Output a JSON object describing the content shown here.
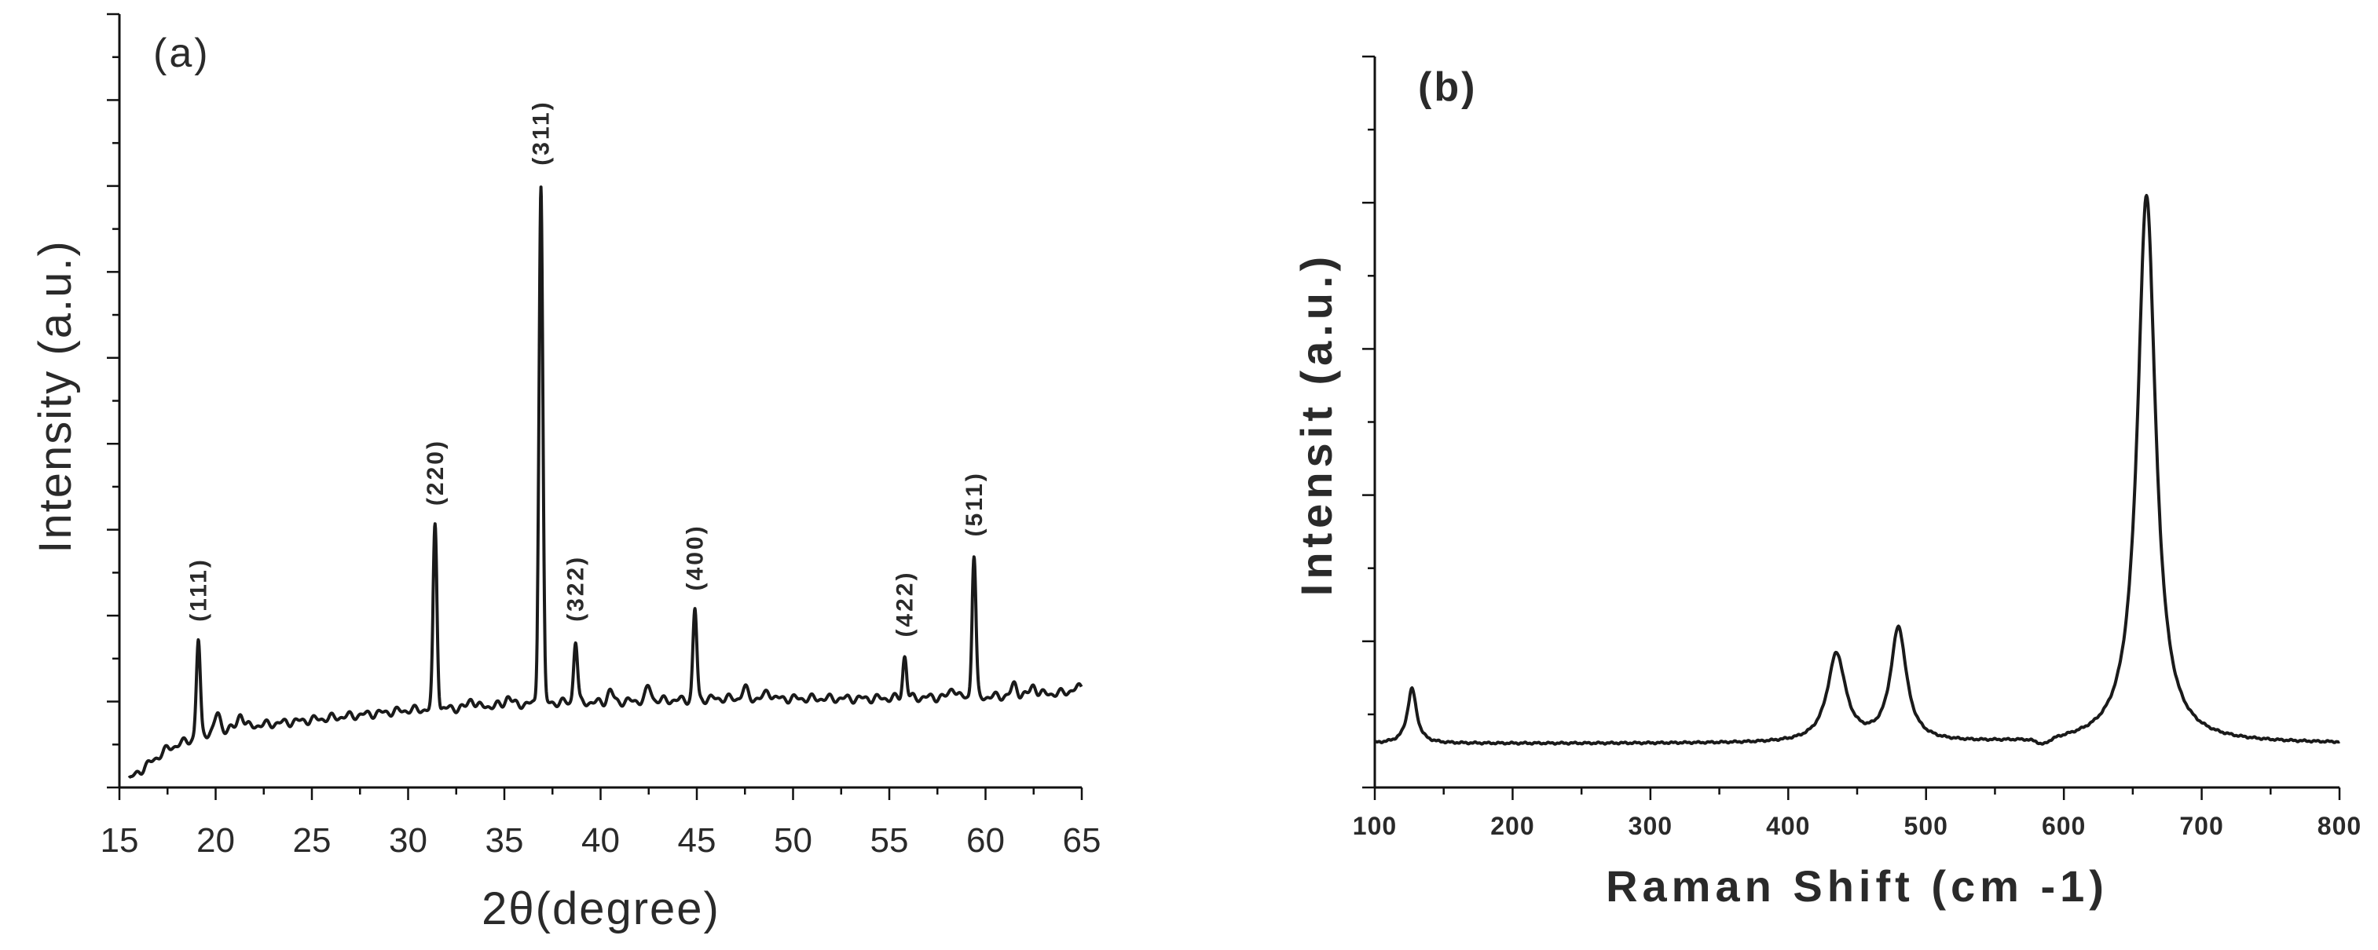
{
  "chart_data": [
    {
      "type": "line",
      "panel_label": "(a)",
      "xlabel": "2θ(degree)",
      "ylabel": "Intensity (a.u.)",
      "xlim": [
        15,
        65
      ],
      "ylim": [
        0,
        100
      ],
      "x_ticks": [
        15,
        20,
        25,
        30,
        35,
        40,
        45,
        50,
        55,
        60,
        65
      ],
      "x_tick_labels": [
        "15",
        "20",
        "25",
        "30",
        "35",
        "40",
        "45",
        "50",
        "55",
        "60",
        "65"
      ],
      "baseline": [
        [
          15.5,
          1
        ],
        [
          16.5,
          3
        ],
        [
          17.5,
          5
        ],
        [
          18.5,
          6
        ],
        [
          19.5,
          7
        ],
        [
          20.5,
          7.5
        ],
        [
          22,
          8
        ],
        [
          24,
          8.5
        ],
        [
          26,
          9
        ],
        [
          28,
          9.5
        ],
        [
          30,
          10
        ],
        [
          32,
          10.2
        ],
        [
          34,
          10.5
        ],
        [
          36,
          10.8
        ],
        [
          38,
          11
        ],
        [
          40,
          11
        ],
        [
          42,
          11.2
        ],
        [
          44,
          11.3
        ],
        [
          46,
          11.5
        ],
        [
          48,
          11.5
        ],
        [
          50,
          11.5
        ],
        [
          52,
          11.5
        ],
        [
          54,
          11.5
        ],
        [
          56,
          11.6
        ],
        [
          58,
          11.7
        ],
        [
          60,
          11.7
        ],
        [
          62,
          12
        ],
        [
          64,
          12.2
        ],
        [
          65,
          13
        ]
      ],
      "peaks": [
        {
          "label": "(111)",
          "x": 19.1,
          "y": 19
        },
        {
          "label": "(220)",
          "x": 31.4,
          "y": 34
        },
        {
          "label": "(311)",
          "x": 36.9,
          "y": 78
        },
        {
          "label": "(322)",
          "x": 38.7,
          "y": 19
        },
        {
          "label": "(400)",
          "x": 44.9,
          "y": 23
        },
        {
          "label": "(422)",
          "x": 55.8,
          "y": 17
        },
        {
          "label": "(511)",
          "x": 59.4,
          "y": 30
        }
      ],
      "minor_peaks": [
        [
          20.1,
          9.5
        ],
        [
          21.3,
          9.6
        ],
        [
          33.3,
          11.5
        ],
        [
          35.2,
          11.8
        ],
        [
          40.5,
          12.5
        ],
        [
          42.5,
          13
        ],
        [
          47.5,
          12.8
        ],
        [
          48.7,
          12.5
        ],
        [
          58.3,
          13
        ],
        [
          61.5,
          13.3
        ],
        [
          62.5,
          13.2
        ]
      ]
    },
    {
      "type": "line",
      "panel_label": "(b)",
      "xlabel": "Raman Shift (cm -1)",
      "ylabel": "Intensit (a.u.)",
      "xlim": [
        100,
        800
      ],
      "ylim": [
        0,
        100
      ],
      "x_ticks": [
        100,
        200,
        300,
        400,
        500,
        600,
        700,
        800
      ],
      "x_tick_labels": [
        "100",
        "200",
        "300",
        "400",
        "500",
        "600",
        "700",
        "800"
      ],
      "baseline_y": 6,
      "peaks": [
        {
          "x": 127,
          "y": 13.5,
          "width": 4
        },
        {
          "x": 435,
          "y": 18,
          "width": 8
        },
        {
          "x": 480,
          "y": 21.5,
          "width": 7
        },
        {
          "x": 585,
          "y": 5,
          "width": 6
        },
        {
          "x": 660,
          "y": 81,
          "width": 8
        }
      ]
    }
  ]
}
